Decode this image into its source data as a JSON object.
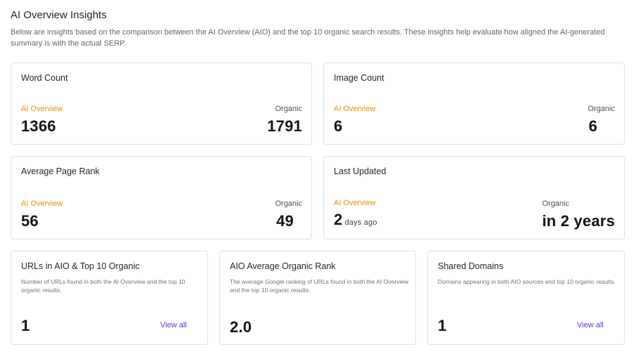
{
  "header": {
    "title": "AI Overview Insights",
    "description": "Below are insights based on the comparison between the AI Overview (AIO) and the top 10 organic search results. These insights help evaluate how aligned the AI-generated summary is with the actual SERP."
  },
  "colors": {
    "aio_label": "#f08c00",
    "link": "#6a2ee8",
    "border": "#dde1e6"
  },
  "cards": {
    "word_count": {
      "title": "Word Count",
      "aio_label": "AI Overview",
      "aio_value": "1366",
      "organic_label": "Organic",
      "organic_value": "1791"
    },
    "image_count": {
      "title": "Image Count",
      "aio_label": "AI Overview",
      "aio_value": "6",
      "organic_label": "Organic",
      "organic_value": "6"
    },
    "avg_page_rank": {
      "title": "Average Page Rank",
      "aio_label": "AI Overview",
      "aio_value": "56",
      "organic_label": "Organic",
      "organic_value": "49"
    },
    "last_updated": {
      "title": "Last Updated",
      "aio_label": "AI Overview",
      "aio_value": "2",
      "aio_unit": "days ago",
      "organic_label": "Organic",
      "organic_value": "in 2 years"
    },
    "urls_in_aio": {
      "title": "URLs in AIO & Top 10 Organic",
      "description": "Number of URLs found in both the AI Overview and the top 10 organic results.",
      "value": "1",
      "link": "View all"
    },
    "aio_avg_rank": {
      "title": "AIO Average Organic Rank",
      "description": "The average Google ranking of URLs found in both the AI Overview and the top 10 organic results.",
      "value": "2.0"
    },
    "shared_domains": {
      "title": "Shared Domains",
      "description": "Domains appearing in both AIO sources and top 10 organic results.",
      "value": "1",
      "link": "View all"
    }
  }
}
